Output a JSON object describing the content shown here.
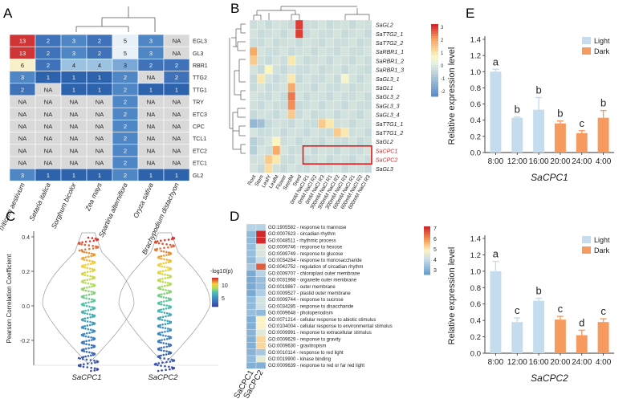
{
  "figure": {
    "panel_labels": [
      "A",
      "B",
      "C",
      "D",
      "E"
    ],
    "panelA": {
      "columns": [
        "Triticum aestivum",
        "Setaria italica",
        "Sorghum bicolor",
        "Zea mays",
        "Spartina alterniflora",
        "Oryza sativa",
        "Brachypodium distachyon"
      ],
      "rows": [
        {
          "gene": "EGL3",
          "values": [
            "13",
            "2",
            "3",
            "2",
            "5",
            "3",
            "NA"
          ]
        },
        {
          "gene": "GL3",
          "values": [
            "13",
            "2",
            "3",
            "2",
            "5",
            "3",
            "NA"
          ]
        },
        {
          "gene": "RBR1",
          "values": [
            "6",
            "2",
            "4",
            "4",
            "3",
            "2",
            "2"
          ]
        },
        {
          "gene": "TTG2",
          "values": [
            "3",
            "1",
            "1",
            "1",
            "2",
            "NA",
            "2"
          ]
        },
        {
          "gene": "TTG1",
          "values": [
            "2",
            "NA",
            "1",
            "1",
            "2",
            "1",
            "1"
          ]
        },
        {
          "gene": "TRY",
          "values": [
            "NA",
            "NA",
            "NA",
            "NA",
            "2",
            "NA",
            "NA"
          ]
        },
        {
          "gene": "ETC3",
          "values": [
            "NA",
            "NA",
            "NA",
            "NA",
            "2",
            "NA",
            "NA"
          ]
        },
        {
          "gene": "CPC",
          "values": [
            "NA",
            "NA",
            "NA",
            "NA",
            "2",
            "NA",
            "NA"
          ]
        },
        {
          "gene": "TCL1",
          "values": [
            "NA",
            "NA",
            "NA",
            "NA",
            "2",
            "NA",
            "NA"
          ]
        },
        {
          "gene": "ETC2",
          "values": [
            "NA",
            "NA",
            "NA",
            "NA",
            "2",
            "NA",
            "NA"
          ]
        },
        {
          "gene": "ETC1",
          "values": [
            "NA",
            "NA",
            "NA",
            "NA",
            "2",
            "NA",
            "NA"
          ]
        },
        {
          "gene": "GL2",
          "values": [
            "3",
            "1",
            "1",
            "1",
            "2",
            "1",
            "1"
          ]
        }
      ]
    },
    "panelB": {
      "genes": [
        "SaGL2",
        "SaTTG2_1",
        "SaTTG2_2",
        "SaRBR1_1",
        "SaRBR1_2",
        "SaRBR1_3",
        "SaGL3_1",
        "SaGL1",
        "SaGL3_2",
        "SaGL3_3",
        "SaGL3_4",
        "SaTTG1_1",
        "SaTTG1_2",
        "SaGL2",
        "SaCPC1",
        "SaCPC2",
        "SaGL3"
      ],
      "highlighted_genes": [
        "SaCPC1",
        "SaCPC2"
      ],
      "conditions": [
        "Root",
        "Stem",
        "LeafY",
        "LeafM",
        "Flower",
        "SeedM",
        "Seed",
        "0mM NaCl R1",
        "0mM NaCl R2",
        "0mM NaCl R3",
        "300mM NaCl R1",
        "300mM NaCl R2",
        "300mM NaCl R3",
        "600mM NaCl R1",
        "600mM NaCl R2",
        "600mM NaCl R3"
      ],
      "scale_ticks": [
        "3",
        "2",
        "1",
        "0",
        "-1",
        "-2"
      ],
      "hot_cells": [
        [
          0,
          6,
          3
        ],
        [
          1,
          6,
          3
        ],
        [
          3,
          0,
          2
        ],
        [
          4,
          0,
          1.5
        ],
        [
          4,
          5,
          1
        ],
        [
          5,
          2,
          0.8
        ],
        [
          6,
          1,
          1
        ],
        [
          6,
          5,
          1
        ],
        [
          6,
          12,
          0.6
        ],
        [
          7,
          5,
          2
        ],
        [
          8,
          5,
          2.5
        ],
        [
          9,
          5,
          2.3
        ],
        [
          10,
          5,
          1.5
        ],
        [
          11,
          9,
          1.5
        ],
        [
          11,
          10,
          1
        ],
        [
          12,
          11,
          1.5
        ],
        [
          12,
          12,
          1
        ],
        [
          13,
          3,
          0.8
        ],
        [
          14,
          3,
          2
        ],
        [
          15,
          2,
          1.5
        ],
        [
          15,
          3,
          1
        ],
        [
          16,
          2,
          1.2
        ]
      ]
    },
    "panelC": {
      "y_axis_label": "Pearson Correlation Coefficient",
      "y_ticks": [
        "0.4",
        "0.2",
        "0.0",
        "-0.2"
      ],
      "violins": [
        "SaCPC1",
        "SaCPC2"
      ],
      "legend_title": "-log10(p)",
      "legend_ticks": [
        "10",
        "5"
      ]
    },
    "panelD": {
      "columns": [
        "SaCPC1",
        "SaCPC2"
      ],
      "terms": [
        "GO:1905582 - response to mannose",
        "GO:0007623 - circadian rhythm",
        "GO:0048511 - rhythmic process",
        "GO:0009746 - response to hexose",
        "GO:0009749 - response to glucose",
        "GO:0034284 - response to monosaccharide",
        "GO:0042752 - regulation of circadian rhythm",
        "GO:0009707 - chloroplast outer membrane",
        "GO:0031968 - organelle outer membrane",
        "GO:0019867 - outer membrane",
        "GO:0009527 - plastid outer membrane",
        "GO:0009744 - response to sucrose",
        "GO:0034285 - response to disaccharide",
        "GO:0009648 - photoperiodism",
        "GO:0071214 - cellular response to abiotic stimulus",
        "GO:0104004 - cellular response to environmental stimulus",
        "GO:0009991 - response to extracellular stimulus",
        "GO:0009629 - response to gravity",
        "GO:0009630 - gravitropism",
        "GO:0010114 - response to red light",
        "GO:0019900 - kinase binding",
        "GO:0009639 - response to red or far red light"
      ],
      "values_col1": [
        4.0,
        3.5,
        3.5,
        3.6,
        3.6,
        3.5,
        3.8,
        3.2,
        3.2,
        3.2,
        3.2,
        3.5,
        3.5,
        3.6,
        3.3,
        3.3,
        3.4,
        3.3,
        3.3,
        3.4,
        3.5,
        3.3
      ],
      "values_col2": [
        4.0,
        7.0,
        7.0,
        4.5,
        4.5,
        4.2,
        6.5,
        4.0,
        3.6,
        3.6,
        3.9,
        4.4,
        4.3,
        3.5,
        5.0,
        5.0,
        4.6,
        5.3,
        5.3,
        3.8,
        4.7,
        3.3
      ],
      "scale_ticks": [
        "7",
        "6",
        "5",
        "4",
        "3"
      ]
    }
  },
  "chart_data": [
    {
      "type": "bar",
      "panel": "E-top",
      "title": "SaCPC1",
      "ylabel": "Relative expression level",
      "categories": [
        "8:00",
        "12:00",
        "16:00",
        "20:00",
        "24:00",
        "4:00"
      ],
      "values": [
        1.0,
        0.43,
        0.53,
        0.36,
        0.24,
        0.43
      ],
      "errors": [
        0.03,
        0.01,
        0.15,
        0.03,
        0.03,
        0.09
      ],
      "condition": [
        "Light",
        "Light",
        "Light",
        "Dark",
        "Dark",
        "Dark"
      ],
      "letters": [
        "a",
        "b",
        "b",
        "b",
        "c",
        "b"
      ],
      "legend": [
        "Light",
        "Dark"
      ],
      "ylim": [
        0,
        1.4
      ],
      "yticks": [
        "0.0",
        "0.2",
        "0.4",
        "0.6",
        "0.8",
        "1.0",
        "1.2",
        "1.4"
      ],
      "colors": {
        "Light": "#c5dcee",
        "Dark": "#f79a5f"
      }
    },
    {
      "type": "bar",
      "panel": "E-bottom",
      "title": "SaCPC2",
      "ylabel": "Relative expression level",
      "categories": [
        "8:00",
        "12:00",
        "16:00",
        "20:00",
        "24:00",
        "4:00"
      ],
      "values": [
        1.0,
        0.38,
        0.64,
        0.41,
        0.22,
        0.38
      ],
      "errors": [
        0.12,
        0.05,
        0.03,
        0.04,
        0.06,
        0.04
      ],
      "condition": [
        "Light",
        "Light",
        "Light",
        "Dark",
        "Dark",
        "Dark"
      ],
      "letters": [
        "a",
        "c",
        "b",
        "c",
        "d",
        "c"
      ],
      "legend": [
        "Light",
        "Dark"
      ],
      "ylim": [
        0,
        1.4
      ],
      "yticks": [
        "0.0",
        "0.2",
        "0.4",
        "0.6",
        "0.8",
        "1.0",
        "1.2",
        "1.4"
      ],
      "colors": {
        "Light": "#c5dcee",
        "Dark": "#f79a5f"
      }
    }
  ]
}
